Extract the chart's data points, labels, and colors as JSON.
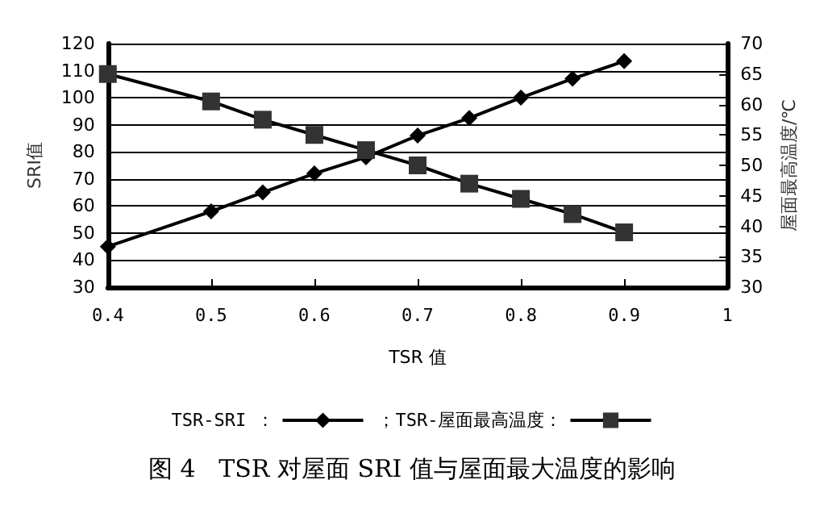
{
  "chart_data": {
    "type": "line",
    "title": "图 4   TSR 对屋面 SRI 值与屋面最大温度的影响",
    "xlabel": "TSR 值",
    "ylabel": "SRI值",
    "y2label": "屋面最高温度/℃",
    "x": [
      0.4,
      0.5,
      0.55,
      0.6,
      0.65,
      0.7,
      0.75,
      0.8,
      0.85,
      0.9
    ],
    "series": [
      {
        "name": "TSR-SRI ：",
        "color": "#000000",
        "marker": "diamond",
        "values": [
          45,
          58,
          65,
          72,
          78,
          86,
          92.5,
          100,
          107,
          113.5
        ]
      },
      {
        "name": "；TSR-屋面最高温度：",
        "color": "#333333",
        "marker": "square",
        "axis": "y2",
        "values": [
          65,
          60.5,
          57.5,
          55,
          52.5,
          50,
          47,
          44.5,
          42,
          39
        ]
      }
    ],
    "xlim": [
      0.4,
      1
    ],
    "xticks": [
      0.4,
      0.5,
      0.6,
      0.7,
      0.8,
      0.9,
      1
    ],
    "ylim": [
      30,
      120
    ],
    "yticks": [
      30,
      40,
      50,
      60,
      70,
      80,
      90,
      100,
      110,
      120
    ],
    "y2lim": [
      30,
      70
    ],
    "y2ticks": [
      30,
      35,
      40,
      45,
      50,
      55,
      60,
      65,
      70
    ],
    "grid": "y",
    "legend": "bottom",
    "line_style": "solid"
  }
}
